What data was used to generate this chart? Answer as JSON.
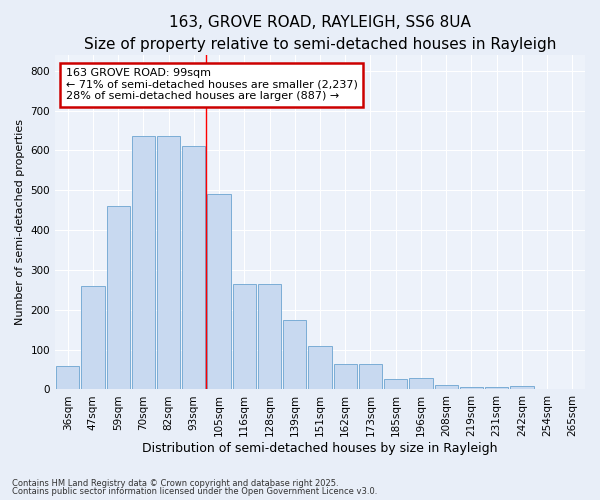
{
  "title1": "163, GROVE ROAD, RAYLEIGH, SS6 8UA",
  "title2": "Size of property relative to semi-detached houses in Rayleigh",
  "xlabel": "Distribution of semi-detached houses by size in Rayleigh",
  "ylabel": "Number of semi-detached properties",
  "categories": [
    "36sqm",
    "47sqm",
    "59sqm",
    "70sqm",
    "82sqm",
    "93sqm",
    "105sqm",
    "116sqm",
    "128sqm",
    "139sqm",
    "151sqm",
    "162sqm",
    "173sqm",
    "185sqm",
    "196sqm",
    "208sqm",
    "219sqm",
    "231sqm",
    "242sqm",
    "254sqm",
    "265sqm"
  ],
  "values": [
    60,
    260,
    460,
    635,
    635,
    610,
    490,
    265,
    265,
    175,
    110,
    65,
    65,
    25,
    30,
    10,
    5,
    5,
    8,
    0,
    0
  ],
  "bar_color": "#c8d9f0",
  "bar_edge_color": "#7badd6",
  "annotation_title": "163 GROVE ROAD: 99sqm",
  "annotation_line1": "← 71% of semi-detached houses are smaller (2,237)",
  "annotation_line2": "28% of semi-detached houses are larger (887) →",
  "footer1": "Contains HM Land Registry data © Crown copyright and database right 2025.",
  "footer2": "Contains public sector information licensed under the Open Government Licence v3.0.",
  "ylim": [
    0,
    840
  ],
  "yticks": [
    0,
    100,
    200,
    300,
    400,
    500,
    600,
    700,
    800
  ],
  "bg_color": "#e8eef8",
  "plot_bg": "#edf2fa",
  "grid_color": "#ffffff",
  "title1_fontsize": 11,
  "title2_fontsize": 9,
  "tick_fontsize": 7.5,
  "xlabel_fontsize": 9,
  "ylabel_fontsize": 8,
  "footer_fontsize": 6,
  "annotation_fontsize": 8,
  "annotation_box_color": "#ffffff",
  "annotation_box_edge": "#cc0000",
  "red_line_x": 5.5
}
